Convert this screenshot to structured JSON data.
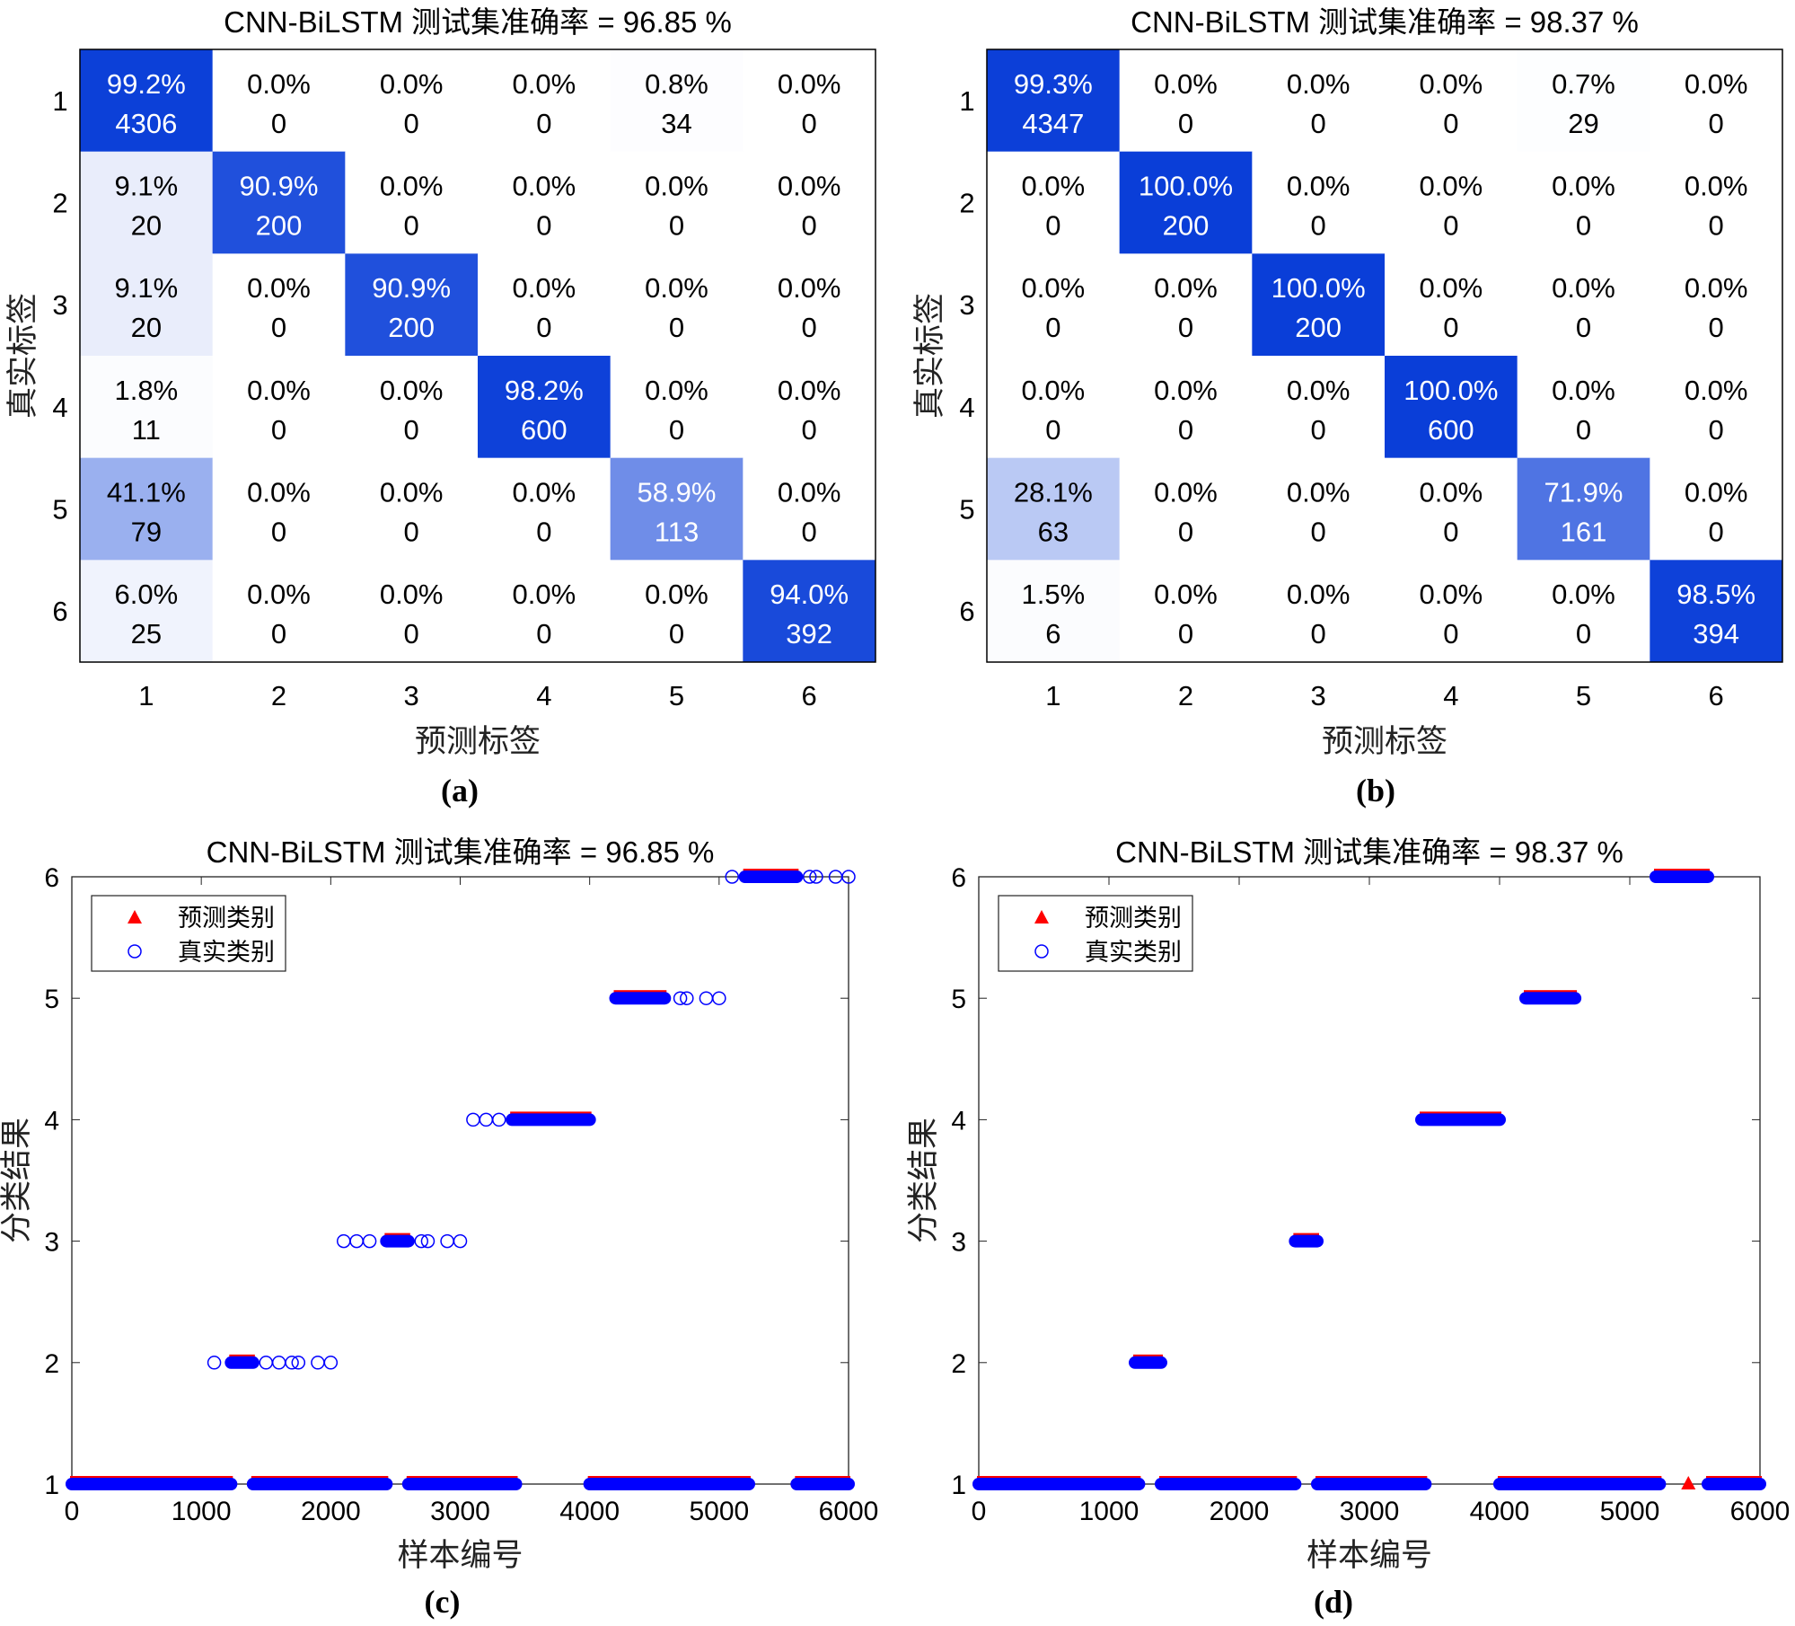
{
  "chart_data": [
    {
      "id": "a",
      "type": "heatmap",
      "title": "CNN-BiLSTM 测试集准确率 = 96.85 %",
      "xlabel": "预测标签",
      "ylabel": "真实标签",
      "caption": "(a)",
      "classes": [
        "1",
        "2",
        "3",
        "4",
        "5",
        "6"
      ],
      "percent": [
        [
          "99.2%",
          "0.0%",
          "0.0%",
          "0.0%",
          "0.8%",
          "0.0%"
        ],
        [
          "9.1%",
          "90.9%",
          "0.0%",
          "0.0%",
          "0.0%",
          "0.0%"
        ],
        [
          "9.1%",
          "0.0%",
          "90.9%",
          "0.0%",
          "0.0%",
          "0.0%"
        ],
        [
          "1.8%",
          "0.0%",
          "0.0%",
          "98.2%",
          "0.0%",
          "0.0%"
        ],
        [
          "41.1%",
          "0.0%",
          "0.0%",
          "0.0%",
          "58.9%",
          "0.0%"
        ],
        [
          "6.0%",
          "0.0%",
          "0.0%",
          "0.0%",
          "0.0%",
          "94.0%"
        ]
      ],
      "counts": [
        [
          4306,
          0,
          0,
          0,
          34,
          0
        ],
        [
          20,
          200,
          0,
          0,
          0,
          0
        ],
        [
          20,
          0,
          200,
          0,
          0,
          0
        ],
        [
          11,
          0,
          0,
          600,
          0,
          0
        ],
        [
          79,
          0,
          0,
          0,
          113,
          0
        ],
        [
          25,
          0,
          0,
          0,
          0,
          392
        ]
      ]
    },
    {
      "id": "b",
      "type": "heatmap",
      "title": "CNN-BiLSTM 测试集准确率 = 98.37 %",
      "xlabel": "预测标签",
      "ylabel": "真实标签",
      "caption": "(b)",
      "classes": [
        "1",
        "2",
        "3",
        "4",
        "5",
        "6"
      ],
      "percent": [
        [
          "99.3%",
          "0.0%",
          "0.0%",
          "0.0%",
          "0.7%",
          "0.0%"
        ],
        [
          "0.0%",
          "100.0%",
          "0.0%",
          "0.0%",
          "0.0%",
          "0.0%"
        ],
        [
          "0.0%",
          "0.0%",
          "100.0%",
          "0.0%",
          "0.0%",
          "0.0%"
        ],
        [
          "0.0%",
          "0.0%",
          "0.0%",
          "100.0%",
          "0.0%",
          "0.0%"
        ],
        [
          "28.1%",
          "0.0%",
          "0.0%",
          "0.0%",
          "71.9%",
          "0.0%"
        ],
        [
          "1.5%",
          "0.0%",
          "0.0%",
          "0.0%",
          "0.0%",
          "98.5%"
        ]
      ],
      "counts": [
        [
          4347,
          0,
          0,
          0,
          29,
          0
        ],
        [
          0,
          200,
          0,
          0,
          0,
          0
        ],
        [
          0,
          0,
          200,
          0,
          0,
          0
        ],
        [
          0,
          0,
          0,
          600,
          0,
          0
        ],
        [
          63,
          0,
          0,
          0,
          161,
          0
        ],
        [
          6,
          0,
          0,
          0,
          0,
          394
        ]
      ]
    },
    {
      "id": "c",
      "type": "scatter",
      "title": "CNN-BiLSTM 测试集准确率 = 96.85 %",
      "xlabel": "样本编号",
      "ylabel": "分类结果",
      "caption": "(c)",
      "xlim": [
        0,
        6000
      ],
      "ylim": [
        1,
        6
      ],
      "xticks": [
        "0",
        "1000",
        "2000",
        "3000",
        "4000",
        "5000",
        "6000"
      ],
      "yticks": [
        "1",
        "2",
        "3",
        "4",
        "5",
        "6"
      ],
      "legend": {
        "placement": "top-left",
        "entries": [
          "预测类别",
          "真实类别"
        ]
      },
      "dense_runs": [
        {
          "y": 1,
          "x": [
            0,
            1230
          ]
        },
        {
          "y": 1,
          "x": [
            1400,
            2430
          ]
        },
        {
          "y": 1,
          "x": [
            2600,
            3430
          ]
        },
        {
          "y": 1,
          "x": [
            4000,
            5230
          ]
        },
        {
          "y": 1,
          "x": [
            5600,
            6000
          ]
        },
        {
          "y": 2,
          "x": [
            1230,
            1400
          ]
        },
        {
          "y": 3,
          "x": [
            2430,
            2600
          ]
        },
        {
          "y": 4,
          "x": [
            3400,
            4000
          ]
        },
        {
          "y": 5,
          "x": [
            4200,
            4580
          ]
        },
        {
          "y": 6,
          "x": [
            5200,
            5600
          ]
        }
      ],
      "true_only_points": [
        {
          "x": 1100,
          "y": 2
        },
        {
          "x": 1500,
          "y": 2
        },
        {
          "x": 1600,
          "y": 2
        },
        {
          "x": 1700,
          "y": 2
        },
        {
          "x": 1750,
          "y": 2
        },
        {
          "x": 1900,
          "y": 2
        },
        {
          "x": 2000,
          "y": 2
        },
        {
          "x": 2100,
          "y": 3
        },
        {
          "x": 2200,
          "y": 3
        },
        {
          "x": 2300,
          "y": 3
        },
        {
          "x": 2700,
          "y": 3
        },
        {
          "x": 2750,
          "y": 3
        },
        {
          "x": 2900,
          "y": 3
        },
        {
          "x": 3000,
          "y": 3
        },
        {
          "x": 3100,
          "y": 4
        },
        {
          "x": 3200,
          "y": 4
        },
        {
          "x": 3300,
          "y": 4
        },
        {
          "x": 4700,
          "y": 5
        },
        {
          "x": 4750,
          "y": 5
        },
        {
          "x": 4900,
          "y": 5
        },
        {
          "x": 5000,
          "y": 5
        },
        {
          "x": 5100,
          "y": 6
        },
        {
          "x": 5700,
          "y": 6
        },
        {
          "x": 5750,
          "y": 6
        },
        {
          "x": 5900,
          "y": 6
        },
        {
          "x": 6000,
          "y": 6
        }
      ],
      "pred_only_points": []
    },
    {
      "id": "d",
      "type": "scatter",
      "title": "CNN-BiLSTM 测试集准确率 = 98.37 %",
      "xlabel": "样本编号",
      "ylabel": "分类结果",
      "caption": "(d)",
      "xlim": [
        0,
        6000
      ],
      "ylim": [
        1,
        6
      ],
      "xticks": [
        "0",
        "1000",
        "2000",
        "3000",
        "4000",
        "5000",
        "6000"
      ],
      "yticks": [
        "1",
        "2",
        "3",
        "4",
        "5",
        "6"
      ],
      "legend": {
        "placement": "top-left",
        "entries": [
          "预测类别",
          "真实类别"
        ]
      },
      "dense_runs": [
        {
          "y": 1,
          "x": [
            0,
            1230
          ]
        },
        {
          "y": 1,
          "x": [
            1400,
            2430
          ]
        },
        {
          "y": 1,
          "x": [
            2600,
            3430
          ]
        },
        {
          "y": 1,
          "x": [
            4000,
            5230
          ]
        },
        {
          "y": 1,
          "x": [
            5600,
            6000
          ]
        },
        {
          "y": 2,
          "x": [
            1200,
            1400
          ]
        },
        {
          "y": 3,
          "x": [
            2430,
            2600
          ]
        },
        {
          "y": 4,
          "x": [
            3400,
            4000
          ]
        },
        {
          "y": 5,
          "x": [
            4200,
            4580
          ]
        },
        {
          "y": 6,
          "x": [
            5200,
            5600
          ]
        }
      ],
      "true_only_points": [],
      "pred_only_points": [
        {
          "x": 5450,
          "y": 1
        }
      ]
    }
  ],
  "colors": {
    "cell_max": "#0a3ed8",
    "predicted": "#ff0000",
    "true": "#0000ff"
  }
}
